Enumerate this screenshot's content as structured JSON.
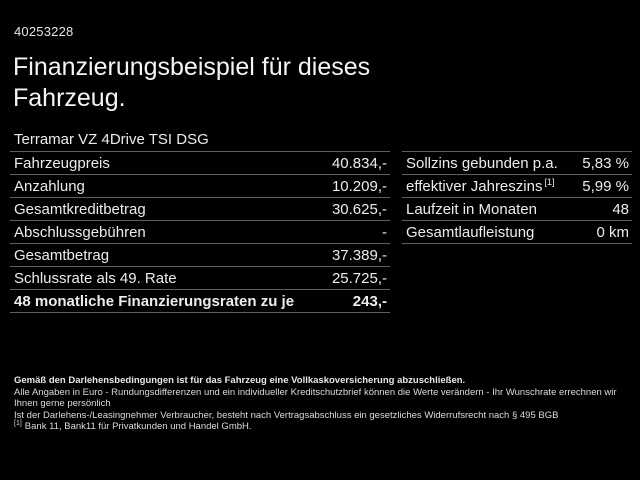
{
  "page": {
    "id_number": "40253228",
    "title": "Finanzierungsbeispiel für dieses Fahrzeug.",
    "vehicle_model": "Terramar VZ 4Drive TSI DSG"
  },
  "colors": {
    "background": "#000000",
    "text": "#f0f0f0",
    "divider": "#5f5f5f"
  },
  "finance_table": {
    "rows": [
      {
        "label": "Fahrzeugpreis",
        "sup": "",
        "value": "40.834,-",
        "bold": false
      },
      {
        "label": "Anzahlung",
        "sup": "",
        "value": "10.209,-",
        "bold": false
      },
      {
        "label": "Gesamtkreditbetrag",
        "sup": "",
        "value": "30.625,-",
        "bold": false
      },
      {
        "label": "Abschlussgebühren",
        "sup": "",
        "value": "-",
        "bold": false
      },
      {
        "label": "Gesamtbetrag",
        "sup": "",
        "value": "37.389,-",
        "bold": false
      },
      {
        "label": "Schlussrate als 49. Rate",
        "sup": "",
        "value": "25.725,-",
        "bold": false
      },
      {
        "label": "48 monatliche Finanzierungsraten zu je",
        "sup": "",
        "value": "243,-",
        "bold": true
      }
    ]
  },
  "conditions_table": {
    "rows": [
      {
        "label": "Sollzins gebunden p.a.",
        "sup": "",
        "value": "5,83 %",
        "bold": false
      },
      {
        "label": "effektiver Jahreszins",
        "sup": "[1]",
        "value": "5,99 %",
        "bold": false
      },
      {
        "label": "Laufzeit in Monaten",
        "sup": "",
        "value": "48",
        "bold": false
      },
      {
        "label": "Gesamtlaufleistung",
        "sup": "",
        "value": "0 km",
        "bold": false
      }
    ]
  },
  "fine_print": {
    "line1": "Gemäß den Darlehensbedingungen ist für das Fahrzeug eine Vollkaskoversicherung abzuschließen.",
    "line2": "Alle Angaben in Euro - Rundungsdifferenzen und ein individueller Kreditschutzbrief können die Werte verändern - Ihr Wunschrate errechnen wir Ihnen gerne persönlich",
    "line3": "Ist der Darlehens-/Leasingnehmer Verbraucher, besteht nach Vertragsabschluss ein gesetzliches Widerrufsrecht nach § 495 BGB",
    "footnote_marker": "[1]",
    "footnote_text": "Bank 11, Bank11 für Privatkunden und Handel GmbH."
  }
}
